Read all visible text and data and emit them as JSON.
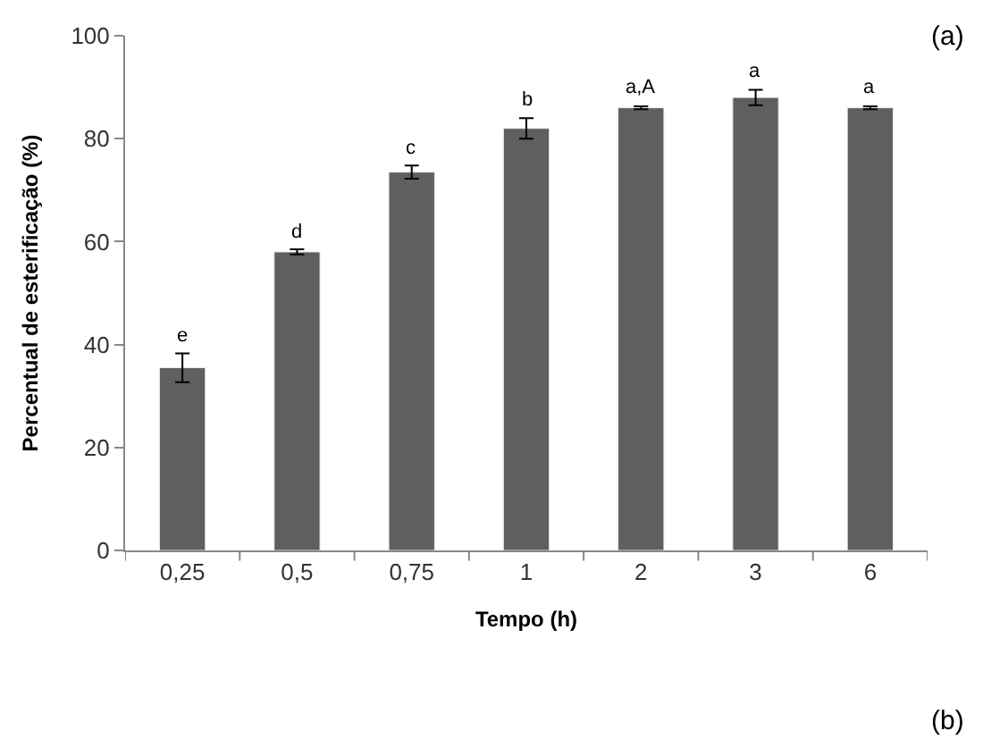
{
  "chart_data": {
    "type": "bar",
    "xlabel": "Tempo (h)",
    "ylabel": "Percentual de esterificação (%)",
    "categories": [
      "0,25",
      "0,5",
      "0,75",
      "1",
      "2",
      "3",
      "6"
    ],
    "series": [
      {
        "color": "#5f5f5f",
        "values": [
          35.5,
          58,
          73.5,
          82,
          86,
          88,
          86
        ],
        "errors": [
          2.8,
          0.5,
          1.3,
          2,
          0.3,
          1.5,
          0.3
        ]
      }
    ],
    "ylim": [
      0,
      100
    ],
    "yticks": [
      0,
      20,
      40,
      60,
      80,
      100
    ],
    "annotations": [
      {
        "text": "e",
        "x": "0,25",
        "y": 38.3
      },
      {
        "text": "d",
        "x": "0,5",
        "y": 58.5
      },
      {
        "text": "c",
        "x": "0,75",
        "y": 74.8
      },
      {
        "text": "b",
        "x": "1",
        "y": 84
      },
      {
        "text": "a,A",
        "x": "2",
        "y": 86.3
      },
      {
        "text": "a",
        "x": "3",
        "y": 89.5
      },
      {
        "text": "a",
        "x": "6",
        "y": 86.3
      },
      "(a)",
      "(b)"
    ]
  }
}
